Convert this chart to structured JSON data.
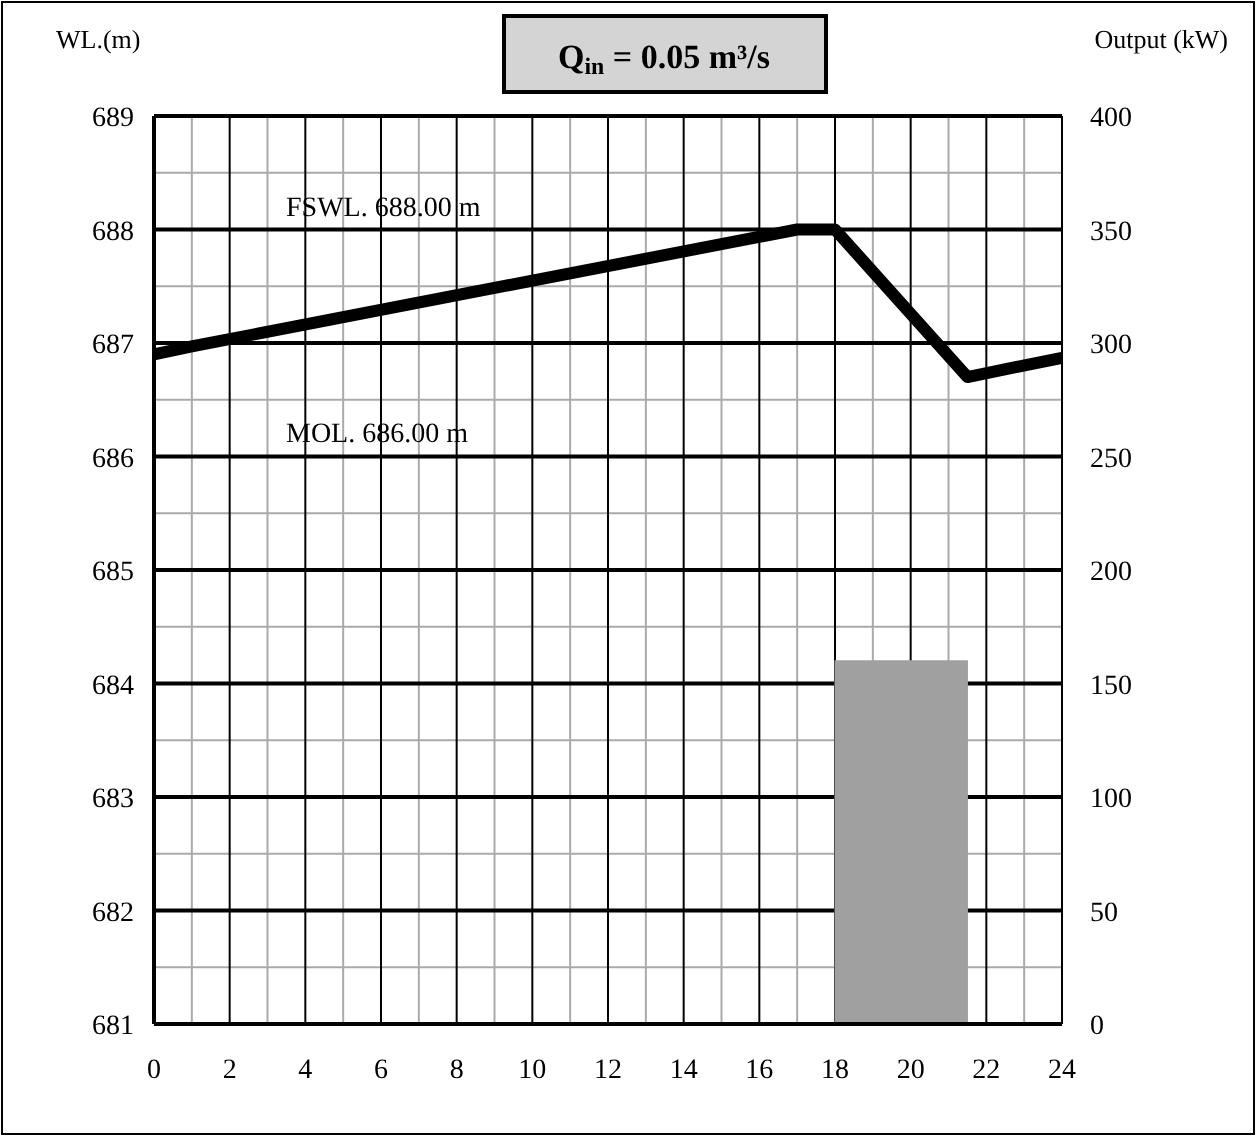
{
  "chart_data": {
    "type": "line",
    "title": "Q$_{in}$ = 0.05 m³/s",
    "ylabel": "WL.(m)",
    "y2label": "Output (kW)",
    "xlim": [
      0,
      24
    ],
    "xticks": [
      0,
      2,
      4,
      6,
      8,
      10,
      12,
      14,
      16,
      18,
      20,
      22,
      24
    ],
    "ylim": [
      681,
      689
    ],
    "yticks": [
      681,
      682,
      683,
      684,
      685,
      686,
      687,
      688,
      689
    ],
    "y2lim": [
      0,
      400
    ],
    "y2ticks": [
      0,
      50,
      100,
      150,
      200,
      250,
      300,
      350,
      400
    ],
    "grid": true,
    "marker": "none",
    "line_style": "solid",
    "annotations": [
      "FSWL. 688.00 m",
      "MOL. 686.00 m"
    ],
    "series": [
      {
        "type": "histogram",
        "axis": "y2",
        "color": "#a0a0a0",
        "bins": [
          18,
          21.5
        ],
        "values": [
          160
        ]
      },
      {
        "color": "#000000",
        "x": [
          0,
          1,
          17,
          18,
          21.5,
          24
        ],
        "values": [
          686.9,
          686.97,
          688.0,
          688.0,
          686.7,
          686.87
        ]
      }
    ]
  }
}
